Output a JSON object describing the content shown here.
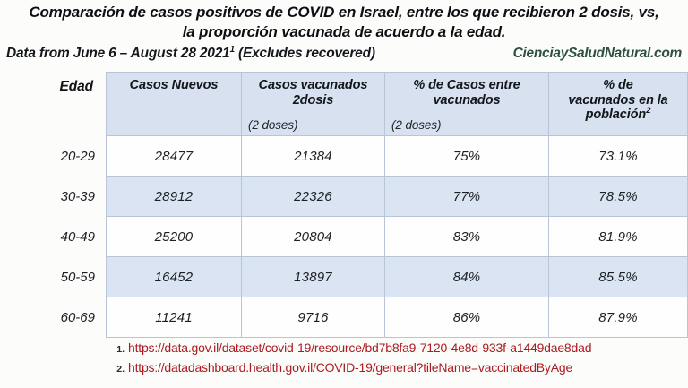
{
  "title": {
    "line1": "Comparación de casos positivos de COVID en Israel, entre los que recibieron 2 dosis, vs,",
    "line2": "la proporción vacunada de acuerdo a la edad."
  },
  "subtitle": {
    "left_prefix": "Data from June 6 – August 28 2021",
    "left_sup": "1",
    "left_suffix": " (Excludes recovered)",
    "right": "CienciaySaludNatural.com"
  },
  "table": {
    "headers": {
      "edad": "Edad",
      "col1": "Casos Nuevos",
      "col2_line1": "Casos vacunados",
      "col2_line2": "2dosis",
      "col2_sub": "(2 doses)",
      "col3_line1": "% de Casos entre",
      "col3_line2": "vacunados",
      "col3_sub": "(2 doses)",
      "col4_line1": "% de",
      "col4_line2": "vacunados en la",
      "col4_line3": "población",
      "col4_sup": "2"
    },
    "rows": [
      {
        "age": "20-29",
        "new_cases": "28477",
        "vaccinated_cases": "21384",
        "pct_among_vaccinated": "75%",
        "pct_population_vaccinated": "73.1%"
      },
      {
        "age": "30-39",
        "new_cases": "28912",
        "vaccinated_cases": "22326",
        "pct_among_vaccinated": "77%",
        "pct_population_vaccinated": "78.5%"
      },
      {
        "age": "40-49",
        "new_cases": "25200",
        "vaccinated_cases": "20804",
        "pct_among_vaccinated": "83%",
        "pct_population_vaccinated": "81.9%"
      },
      {
        "age": "50-59",
        "new_cases": "16452",
        "vaccinated_cases": "13897",
        "pct_among_vaccinated": "84%",
        "pct_population_vaccinated": "85.5%"
      },
      {
        "age": "60-69",
        "new_cases": "11241",
        "vaccinated_cases": "9716",
        "pct_among_vaccinated": "86%",
        "pct_population_vaccinated": "87.9%"
      }
    ]
  },
  "footnotes": [
    {
      "num": "1.",
      "url": "https://data.gov.il/dataset/covid-19/resource/bd7b8fa9-7120-4e8d-933f-a1449dae8dad"
    },
    {
      "num": "2.",
      "url": "https://datadashboard.health.gov.il/COVID-19/general?tileName=vaccinatedByAge"
    }
  ],
  "colors": {
    "header_bg": "#d8e1f0",
    "alt_row_bg": "#dbe4f2",
    "border": "#b9c5d7",
    "link_red": "#ad1b20",
    "brand_green": "#2e4f41",
    "text": "#14171c"
  },
  "chart_data": {
    "type": "table",
    "title": "Comparación de casos positivos de COVID en Israel, entre los que recibieron 2 dosis, vs, la proporción vacunada de acuerdo a la edad.",
    "subtitle": "Data from June 6 – August 28 2021 (Excludes recovered)",
    "source_site": "CienciaySaludNatural.com",
    "columns": [
      "Edad",
      "Casos Nuevos",
      "Casos vacunados 2dosis (2 doses)",
      "% de Casos entre vacunados (2 doses)",
      "% de vacunados en la población"
    ],
    "rows": [
      [
        "20-29",
        28477,
        21384,
        "75%",
        "73.1%"
      ],
      [
        "30-39",
        28912,
        22326,
        "77%",
        "78.5%"
      ],
      [
        "40-49",
        25200,
        20804,
        "83%",
        "81.9%"
      ],
      [
        "50-59",
        16452,
        13897,
        "84%",
        "85.5%"
      ],
      [
        "60-69",
        11241,
        9716,
        "86%",
        "87.9%"
      ]
    ],
    "sources": [
      "https://data.gov.il/dataset/covid-19/resource/bd7b8fa9-7120-4e8d-933f-a1449dae8dad",
      "https://datadashboard.health.gov.il/COVID-19/general?tileName=vaccinatedByAge"
    ]
  }
}
